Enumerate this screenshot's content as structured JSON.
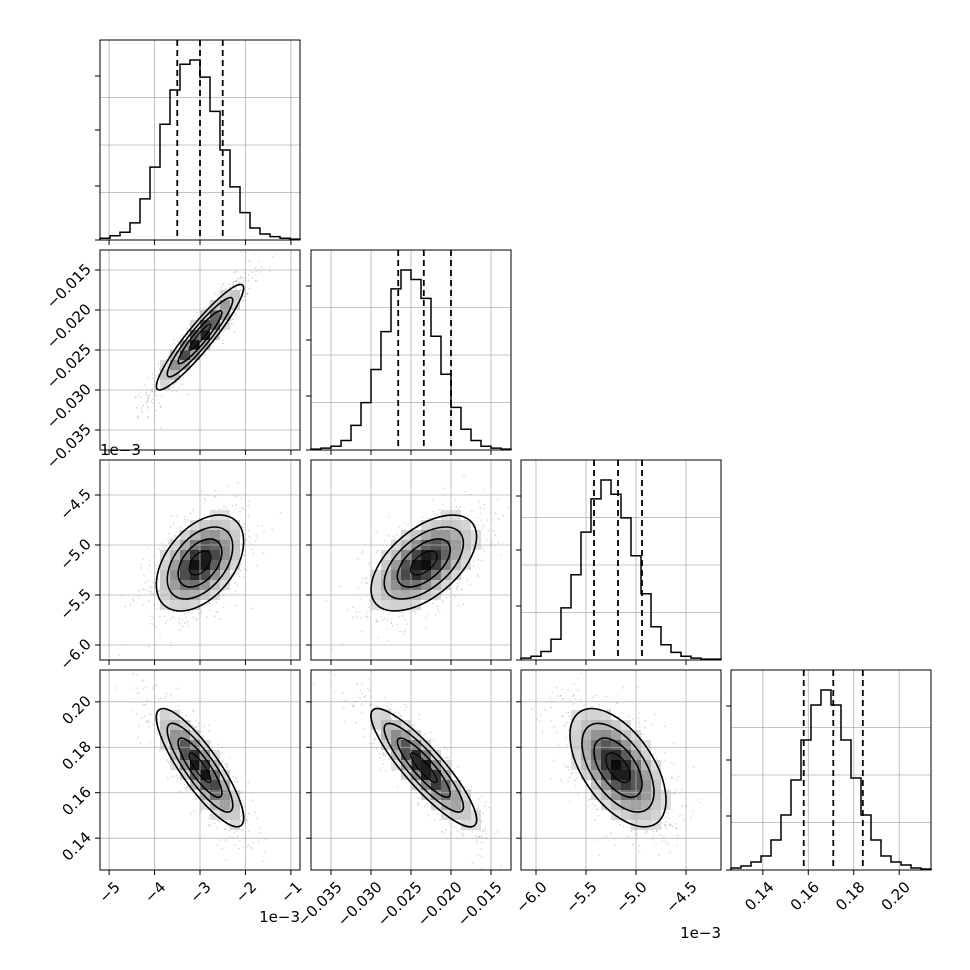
{
  "chart_data": {
    "type": "corner",
    "parameters": [
      {
        "range": [
          -5.2,
          -0.8
        ],
        "ticks": [
          -5,
          -4,
          -3,
          -2,
          -1
        ],
        "tick_labels": [
          "−5",
          "−4",
          "−3",
          "−2",
          "−1"
        ],
        "scale_label": "1e−3",
        "quantiles": [
          -3.5,
          -3.0,
          -2.5
        ],
        "center": -3.0,
        "sd": 0.48
      },
      {
        "range": [
          -0.0375,
          -0.0125
        ],
        "ticks": [
          -0.035,
          -0.03,
          -0.025,
          -0.02,
          -0.015
        ],
        "tick_labels": [
          "−0.035",
          "−0.030",
          "−0.025",
          "−0.020",
          "−0.015"
        ],
        "scale_label": "",
        "quantiles": [
          -0.0266,
          -0.0234,
          -0.02
        ],
        "center": -0.0234,
        "sd": 0.0033
      },
      {
        "range": [
          -6.15,
          -4.15
        ],
        "ticks": [
          -6.0,
          -5.5,
          -5.0,
          -4.5
        ],
        "tick_labels": [
          "−6.0",
          "−5.5",
          "−5.0",
          "−4.5"
        ],
        "scale_label": "1e−3",
        "quantiles": [
          -5.42,
          -5.18,
          -4.94
        ],
        "center": -5.18,
        "sd": 0.24
      },
      {
        "range": [
          0.126,
          0.214
        ],
        "ticks": [
          0.14,
          0.16,
          0.18,
          0.2
        ],
        "tick_labels": [
          "0.14",
          "0.16",
          "0.18",
          "0.20"
        ],
        "scale_label": "",
        "quantiles": [
          0.158,
          0.171,
          0.184
        ],
        "center": 0.171,
        "sd": 0.013
      }
    ],
    "correlations": {
      "1-0": 0.93,
      "2-0": 0.45,
      "2-1": 0.55,
      "3-0": -0.85,
      "3-1": -0.88,
      "3-2": -0.55
    },
    "histograms": [
      {
        "bins": 20,
        "counts": [
          2,
          5,
          9,
          20,
          48,
          85,
          135,
          175,
          205,
          210,
          190,
          150,
          105,
          62,
          32,
          14,
          7,
          4,
          2,
          1
        ]
      },
      {
        "bins": 20,
        "counts": [
          1,
          2,
          4,
          10,
          26,
          50,
          85,
          125,
          170,
          190,
          180,
          160,
          120,
          80,
          45,
          22,
          10,
          4,
          2,
          1
        ]
      },
      {
        "bins": 20,
        "counts": [
          2,
          4,
          9,
          22,
          55,
          90,
          135,
          170,
          190,
          175,
          150,
          110,
          70,
          35,
          16,
          8,
          4,
          2,
          1,
          1
        ]
      },
      {
        "bins": 20,
        "counts": [
          2,
          4,
          8,
          14,
          30,
          55,
          90,
          130,
          165,
          180,
          165,
          130,
          92,
          55,
          30,
          14,
          8,
          5,
          2,
          1
        ]
      }
    ],
    "grid": true,
    "contour_levels": 3
  }
}
